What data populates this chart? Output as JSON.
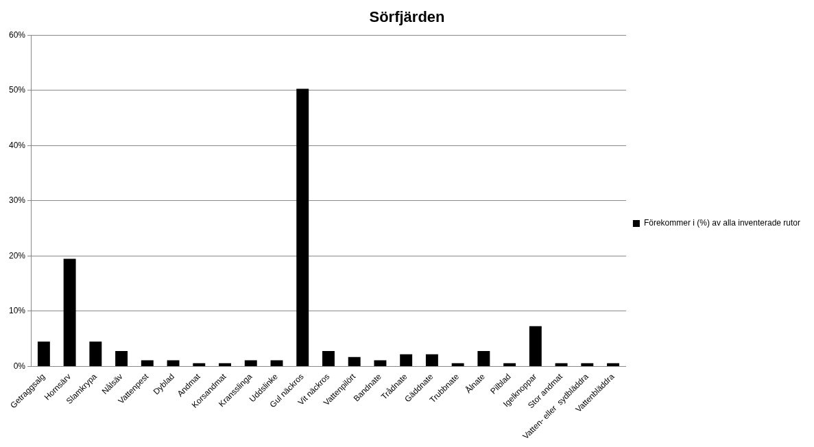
{
  "chart_data": {
    "type": "bar",
    "title": "Sörfjärden",
    "categories": [
      "Getraggsalg",
      "Hornsärv",
      "Slamkrypa",
      "Nålsäv",
      "Vattenpest",
      "Dyblad",
      "Andmat",
      "Korsandmat",
      "Kransslinga",
      "Uddslinke",
      "Gul näckros",
      "Vit näckros",
      "Vattenpilört",
      "Bandnate",
      "Trådnate",
      "Gäddnate",
      "Trubbnate",
      "Ålnate",
      "Pilblad",
      "Igelknoppar",
      "Stor andmat",
      "Vatten- eller  sydbläddra",
      "Vattenbläddra"
    ],
    "series": [
      {
        "name": "Förekommer i (%) av alla inventerade rutor",
        "color": "#000000",
        "values": [
          4.5,
          19.5,
          4.5,
          2.8,
          1.1,
          1.1,
          0.6,
          0.6,
          1.1,
          1.1,
          50.3,
          2.8,
          1.7,
          1.1,
          2.2,
          2.2,
          0.6,
          2.8,
          0.6,
          7.3,
          0.6,
          0.6,
          0.6
        ]
      }
    ],
    "ylim": [
      0,
      60
    ],
    "yticks": [
      {
        "value": 0,
        "label": "0%"
      },
      {
        "value": 10,
        "label": "10%"
      },
      {
        "value": 20,
        "label": "20%"
      },
      {
        "value": 30,
        "label": "30%"
      },
      {
        "value": 40,
        "label": "40%"
      },
      {
        "value": 50,
        "label": "50%"
      },
      {
        "value": 60,
        "label": "60%"
      }
    ],
    "grid": "y",
    "legend": "right"
  }
}
